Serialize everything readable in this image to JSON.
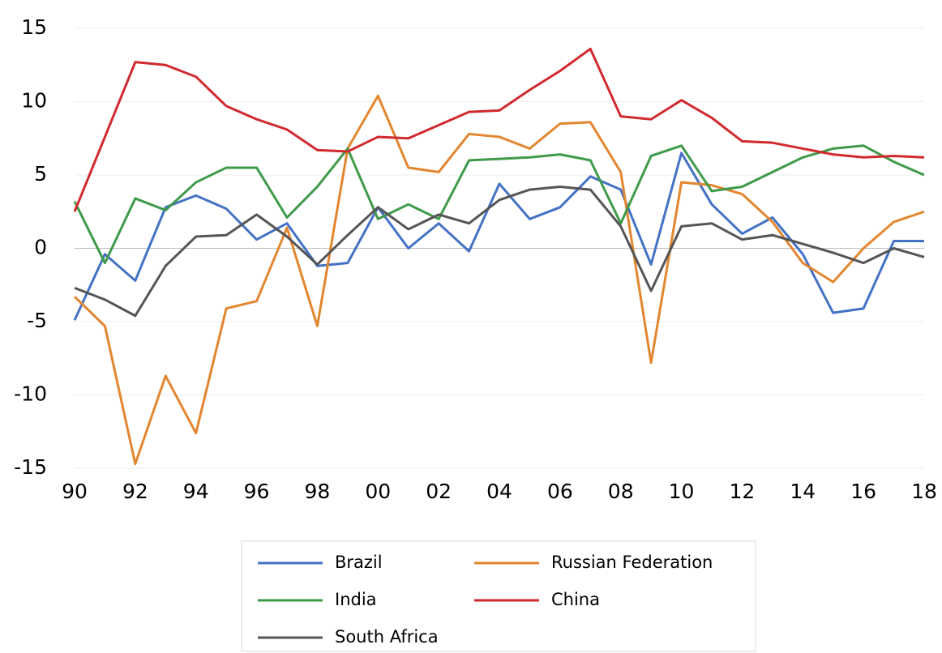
{
  "chart_data": {
    "type": "line",
    "categories": [
      "90",
      null,
      "92",
      null,
      "94",
      null,
      "96",
      null,
      "98",
      null,
      "00",
      null,
      "02",
      null,
      "04",
      null,
      "06",
      null,
      "08",
      null,
      "10",
      null,
      "12",
      null,
      "14",
      null,
      "16",
      null,
      "18"
    ],
    "series": [
      {
        "name": "Brazil",
        "color": "#4472c4",
        "values": [
          -4.9,
          -0.4,
          -2.2,
          2.8,
          3.6,
          2.7,
          0.6,
          1.7,
          -1.2,
          -1.0,
          2.8,
          0.0,
          1.7,
          -0.2,
          4.4,
          2.0,
          2.8,
          4.9,
          4.0,
          -1.1,
          6.5,
          3.0,
          1.0,
          2.1,
          -0.4,
          -4.4,
          -4.1,
          0.5,
          0.5
        ]
      },
      {
        "name": "Russian Federation",
        "color": "#e2862f",
        "values": [
          -3.3,
          -5.3,
          -14.7,
          -8.7,
          -12.6,
          -4.1,
          -3.6,
          1.4,
          -5.3,
          6.8,
          10.4,
          5.5,
          5.2,
          7.8,
          7.6,
          6.8,
          8.5,
          8.6,
          5.2,
          -7.8,
          4.5,
          4.3,
          3.7,
          1.8,
          -1.0,
          -2.3,
          0.0,
          1.8,
          2.5
        ]
      },
      {
        "name": "India",
        "color": "#3f9a4a",
        "values": [
          3.2,
          -1.0,
          3.4,
          2.6,
          4.5,
          5.5,
          5.5,
          2.1,
          4.2,
          6.8,
          2.0,
          3.0,
          2.0,
          6.0,
          6.1,
          6.2,
          6.4,
          6.0,
          1.7,
          6.3,
          7.0,
          3.9,
          4.2,
          5.2,
          6.2,
          6.8,
          7.0,
          5.9,
          5.0
        ]
      },
      {
        "name": "China",
        "color": "#d02a2f",
        "values": [
          2.5,
          7.6,
          12.7,
          12.5,
          11.7,
          9.7,
          8.8,
          8.1,
          6.7,
          6.6,
          7.6,
          7.5,
          8.4,
          9.3,
          9.4,
          10.8,
          12.1,
          13.6,
          9.0,
          8.8,
          10.1,
          8.9,
          7.3,
          7.2,
          6.8,
          6.4,
          6.2,
          6.3,
          6.2
        ]
      },
      {
        "name": "South Africa",
        "color": "#555555",
        "values": [
          -2.7,
          -3.5,
          -4.6,
          -1.2,
          0.8,
          0.9,
          2.3,
          0.8,
          -1.1,
          0.9,
          2.8,
          1.3,
          2.3,
          1.7,
          3.3,
          4.0,
          4.2,
          4.0,
          1.5,
          -2.9,
          1.5,
          1.7,
          0.6,
          0.9,
          0.3,
          -0.3,
          -1.0,
          0.0,
          -0.6
        ]
      }
    ],
    "ylim": [
      -15,
      15
    ],
    "yticks": [
      -15,
      -10,
      -5,
      0,
      5,
      10,
      15
    ],
    "grid": true,
    "legend": "bottom"
  }
}
